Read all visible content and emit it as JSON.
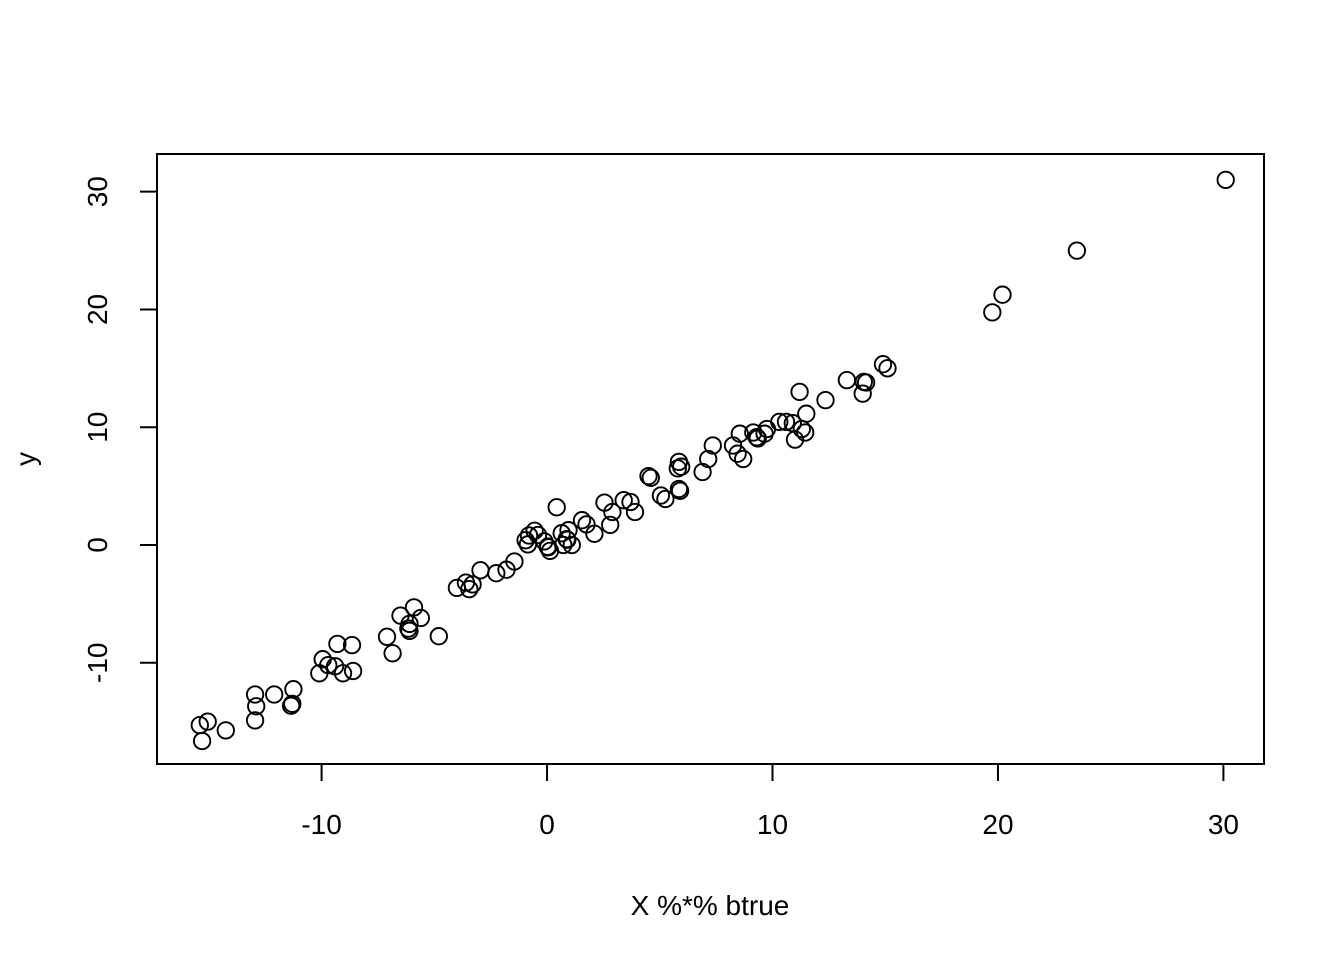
{
  "figure": {
    "background": "#ffffff",
    "foreground": "#000000"
  },
  "chart_data": {
    "type": "scatter",
    "title": "",
    "xlabel": "X %*% btrue",
    "ylabel": "y",
    "marker": "open-circle",
    "marker_color": "#000000",
    "grid": false,
    "legend": null,
    "xlim": [
      -17.3,
      31.8
    ],
    "ylim": [
      -18.6,
      33.2
    ],
    "x_ticks": [
      -10,
      0,
      10,
      20,
      30
    ],
    "y_ticks": [
      -10,
      0,
      10,
      20,
      30
    ],
    "points": [
      [
        -15.4,
        -15.3
      ],
      [
        -15.05,
        -15.0
      ],
      [
        -15.3,
        -16.65
      ],
      [
        -14.25,
        -15.75
      ],
      [
        -12.95,
        -12.7
      ],
      [
        -12.9,
        -13.7
      ],
      [
        -12.95,
        -14.9
      ],
      [
        -12.1,
        -12.7
      ],
      [
        -11.25,
        -12.25
      ],
      [
        -11.3,
        -13.5
      ],
      [
        -11.35,
        -13.65
      ],
      [
        -10.1,
        -10.9
      ],
      [
        -9.95,
        -9.7
      ],
      [
        -9.7,
        -10.2
      ],
      [
        -9.4,
        -10.3
      ],
      [
        -9.3,
        -8.4
      ],
      [
        -9.05,
        -10.9
      ],
      [
        -8.65,
        -8.5
      ],
      [
        -8.6,
        -10.7
      ],
      [
        -7.1,
        -7.8
      ],
      [
        -6.85,
        -9.2
      ],
      [
        -6.5,
        -6.0
      ],
      [
        -6.1,
        -6.7
      ],
      [
        -6.15,
        -7.1
      ],
      [
        -6.1,
        -7.3
      ],
      [
        -5.9,
        -5.3
      ],
      [
        -5.6,
        -6.2
      ],
      [
        -4.8,
        -7.75
      ],
      [
        -4.0,
        -3.65
      ],
      [
        -3.6,
        -3.2
      ],
      [
        -3.3,
        -3.35
      ],
      [
        -3.45,
        -3.75
      ],
      [
        -2.95,
        -2.15
      ],
      [
        -2.25,
        -2.4
      ],
      [
        -1.8,
        -2.1
      ],
      [
        -1.45,
        -1.4
      ],
      [
        -0.95,
        0.4
      ],
      [
        -0.85,
        0.05
      ],
      [
        -0.8,
        0.8
      ],
      [
        -0.55,
        1.2
      ],
      [
        -0.4,
        0.85
      ],
      [
        -0.12,
        0.3
      ],
      [
        0.03,
        -0.15
      ],
      [
        0.05,
        -0.2
      ],
      [
        0.13,
        -0.5
      ],
      [
        0.43,
        3.2
      ],
      [
        0.65,
        1.0
      ],
      [
        0.72,
        0.0
      ],
      [
        0.87,
        0.5
      ],
      [
        0.9,
        0.45
      ],
      [
        0.95,
        1.25
      ],
      [
        1.1,
        0.0
      ],
      [
        1.55,
        2.1
      ],
      [
        1.75,
        1.75
      ],
      [
        2.1,
        0.95
      ],
      [
        2.55,
        3.6
      ],
      [
        2.8,
        1.7
      ],
      [
        2.9,
        2.8
      ],
      [
        3.4,
        3.8
      ],
      [
        3.7,
        3.65
      ],
      [
        3.9,
        2.8
      ],
      [
        4.5,
        5.85
      ],
      [
        4.6,
        5.7
      ],
      [
        5.05,
        4.2
      ],
      [
        5.25,
        3.9
      ],
      [
        5.85,
        4.75
      ],
      [
        5.9,
        4.6
      ],
      [
        5.8,
        6.5
      ],
      [
        5.85,
        7.05
      ],
      [
        5.95,
        6.65
      ],
      [
        6.9,
        6.2
      ],
      [
        7.15,
        7.3
      ],
      [
        7.35,
        8.45
      ],
      [
        8.25,
        8.45
      ],
      [
        8.45,
        7.75
      ],
      [
        8.7,
        7.3
      ],
      [
        8.55,
        9.45
      ],
      [
        9.15,
        9.55
      ],
      [
        9.3,
        9.15
      ],
      [
        9.35,
        9.05
      ],
      [
        9.65,
        9.45
      ],
      [
        9.75,
        9.85
      ],
      [
        10.3,
        10.45
      ],
      [
        10.6,
        10.45
      ],
      [
        10.9,
        10.35
      ],
      [
        11.0,
        8.95
      ],
      [
        11.2,
        13.0
      ],
      [
        11.3,
        9.85
      ],
      [
        11.45,
        9.55
      ],
      [
        11.5,
        11.15
      ],
      [
        12.35,
        12.3
      ],
      [
        13.3,
        14.0
      ],
      [
        14.0,
        12.85
      ],
      [
        14.05,
        13.85
      ],
      [
        14.15,
        13.8
      ],
      [
        14.9,
        15.35
      ],
      [
        15.1,
        15.0
      ],
      [
        19.75,
        19.75
      ],
      [
        20.2,
        21.25
      ],
      [
        23.5,
        25.0
      ],
      [
        30.1,
        31.0
      ]
    ]
  }
}
